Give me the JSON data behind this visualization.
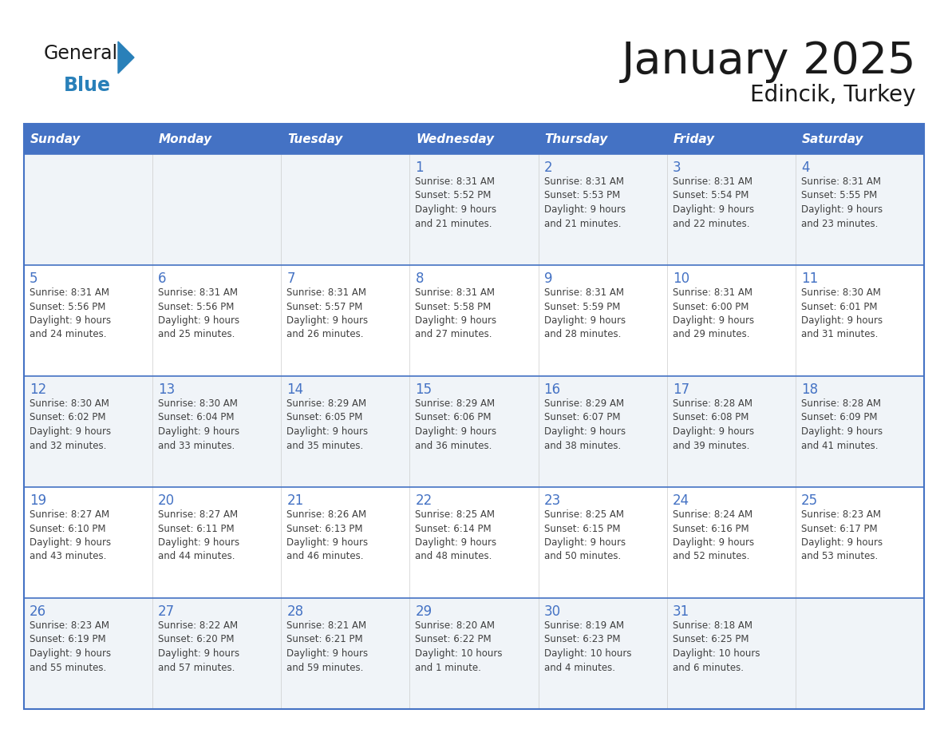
{
  "title": "January 2025",
  "subtitle": "Edincik, Turkey",
  "days_of_week": [
    "Sunday",
    "Monday",
    "Tuesday",
    "Wednesday",
    "Thursday",
    "Friday",
    "Saturday"
  ],
  "header_bg": "#4472C4",
  "header_text": "#FFFFFF",
  "cell_bg_light": "#F0F4F8",
  "cell_bg_white": "#FFFFFF",
  "border_color": "#4472C4",
  "day_number_color": "#4472C4",
  "cell_text_color": "#404040",
  "title_color": "#1a1a1a",
  "logo_general_color": "#1a1a1a",
  "logo_blue_color": "#2980B9",
  "calendar_data": [
    [
      {
        "day": null,
        "info": ""
      },
      {
        "day": null,
        "info": ""
      },
      {
        "day": null,
        "info": ""
      },
      {
        "day": 1,
        "info": "Sunrise: 8:31 AM\nSunset: 5:52 PM\nDaylight: 9 hours\nand 21 minutes."
      },
      {
        "day": 2,
        "info": "Sunrise: 8:31 AM\nSunset: 5:53 PM\nDaylight: 9 hours\nand 21 minutes."
      },
      {
        "day": 3,
        "info": "Sunrise: 8:31 AM\nSunset: 5:54 PM\nDaylight: 9 hours\nand 22 minutes."
      },
      {
        "day": 4,
        "info": "Sunrise: 8:31 AM\nSunset: 5:55 PM\nDaylight: 9 hours\nand 23 minutes."
      }
    ],
    [
      {
        "day": 5,
        "info": "Sunrise: 8:31 AM\nSunset: 5:56 PM\nDaylight: 9 hours\nand 24 minutes."
      },
      {
        "day": 6,
        "info": "Sunrise: 8:31 AM\nSunset: 5:56 PM\nDaylight: 9 hours\nand 25 minutes."
      },
      {
        "day": 7,
        "info": "Sunrise: 8:31 AM\nSunset: 5:57 PM\nDaylight: 9 hours\nand 26 minutes."
      },
      {
        "day": 8,
        "info": "Sunrise: 8:31 AM\nSunset: 5:58 PM\nDaylight: 9 hours\nand 27 minutes."
      },
      {
        "day": 9,
        "info": "Sunrise: 8:31 AM\nSunset: 5:59 PM\nDaylight: 9 hours\nand 28 minutes."
      },
      {
        "day": 10,
        "info": "Sunrise: 8:31 AM\nSunset: 6:00 PM\nDaylight: 9 hours\nand 29 minutes."
      },
      {
        "day": 11,
        "info": "Sunrise: 8:30 AM\nSunset: 6:01 PM\nDaylight: 9 hours\nand 31 minutes."
      }
    ],
    [
      {
        "day": 12,
        "info": "Sunrise: 8:30 AM\nSunset: 6:02 PM\nDaylight: 9 hours\nand 32 minutes."
      },
      {
        "day": 13,
        "info": "Sunrise: 8:30 AM\nSunset: 6:04 PM\nDaylight: 9 hours\nand 33 minutes."
      },
      {
        "day": 14,
        "info": "Sunrise: 8:29 AM\nSunset: 6:05 PM\nDaylight: 9 hours\nand 35 minutes."
      },
      {
        "day": 15,
        "info": "Sunrise: 8:29 AM\nSunset: 6:06 PM\nDaylight: 9 hours\nand 36 minutes."
      },
      {
        "day": 16,
        "info": "Sunrise: 8:29 AM\nSunset: 6:07 PM\nDaylight: 9 hours\nand 38 minutes."
      },
      {
        "day": 17,
        "info": "Sunrise: 8:28 AM\nSunset: 6:08 PM\nDaylight: 9 hours\nand 39 minutes."
      },
      {
        "day": 18,
        "info": "Sunrise: 8:28 AM\nSunset: 6:09 PM\nDaylight: 9 hours\nand 41 minutes."
      }
    ],
    [
      {
        "day": 19,
        "info": "Sunrise: 8:27 AM\nSunset: 6:10 PM\nDaylight: 9 hours\nand 43 minutes."
      },
      {
        "day": 20,
        "info": "Sunrise: 8:27 AM\nSunset: 6:11 PM\nDaylight: 9 hours\nand 44 minutes."
      },
      {
        "day": 21,
        "info": "Sunrise: 8:26 AM\nSunset: 6:13 PM\nDaylight: 9 hours\nand 46 minutes."
      },
      {
        "day": 22,
        "info": "Sunrise: 8:25 AM\nSunset: 6:14 PM\nDaylight: 9 hours\nand 48 minutes."
      },
      {
        "day": 23,
        "info": "Sunrise: 8:25 AM\nSunset: 6:15 PM\nDaylight: 9 hours\nand 50 minutes."
      },
      {
        "day": 24,
        "info": "Sunrise: 8:24 AM\nSunset: 6:16 PM\nDaylight: 9 hours\nand 52 minutes."
      },
      {
        "day": 25,
        "info": "Sunrise: 8:23 AM\nSunset: 6:17 PM\nDaylight: 9 hours\nand 53 minutes."
      }
    ],
    [
      {
        "day": 26,
        "info": "Sunrise: 8:23 AM\nSunset: 6:19 PM\nDaylight: 9 hours\nand 55 minutes."
      },
      {
        "day": 27,
        "info": "Sunrise: 8:22 AM\nSunset: 6:20 PM\nDaylight: 9 hours\nand 57 minutes."
      },
      {
        "day": 28,
        "info": "Sunrise: 8:21 AM\nSunset: 6:21 PM\nDaylight: 9 hours\nand 59 minutes."
      },
      {
        "day": 29,
        "info": "Sunrise: 8:20 AM\nSunset: 6:22 PM\nDaylight: 10 hours\nand 1 minute."
      },
      {
        "day": 30,
        "info": "Sunrise: 8:19 AM\nSunset: 6:23 PM\nDaylight: 10 hours\nand 4 minutes."
      },
      {
        "day": 31,
        "info": "Sunrise: 8:18 AM\nSunset: 6:25 PM\nDaylight: 10 hours\nand 6 minutes."
      },
      {
        "day": null,
        "info": ""
      }
    ]
  ]
}
